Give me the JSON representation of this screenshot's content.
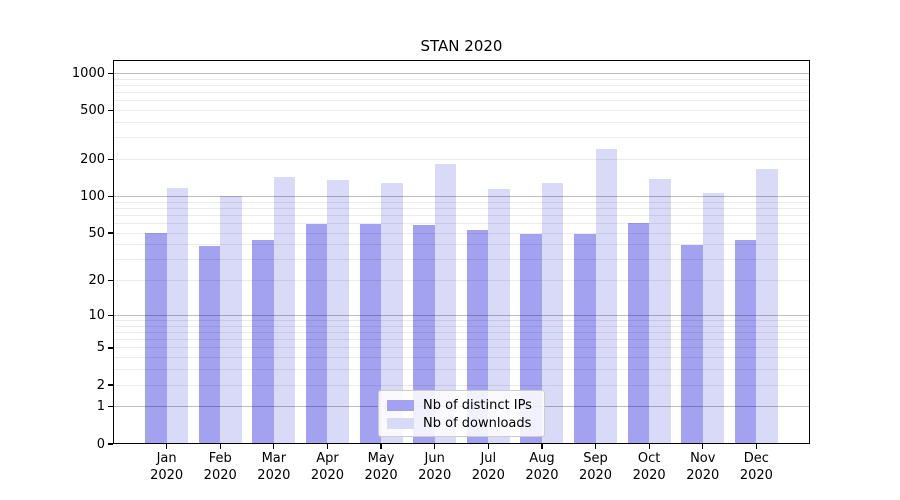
{
  "chart_data": {
    "type": "bar",
    "title": "STAN 2020",
    "categories": [
      "Jan",
      "Feb",
      "Mar",
      "Apr",
      "May",
      "Jun",
      "Jul",
      "Aug",
      "Sep",
      "Oct",
      "Nov",
      "Dec"
    ],
    "category_year": "2020",
    "series": [
      {
        "name": "Nb of distinct IPs",
        "color": "#a2a2f0",
        "values": [
          50,
          39,
          44,
          59,
          59,
          58,
          53,
          49,
          49,
          61,
          40,
          44
        ]
      },
      {
        "name": "Nb of downloads",
        "color": "#d9d9f8",
        "values": [
          118,
          100,
          143,
          137,
          128,
          185,
          116,
          130,
          245,
          140,
          107,
          168
        ]
      }
    ],
    "yscale": "log1p",
    "ylim": [
      0,
      1270
    ],
    "yticks": [
      0,
      1,
      2,
      5,
      10,
      20,
      50,
      100,
      200,
      500,
      1000
    ],
    "major_gridline_values": [
      1,
      10,
      100,
      1000
    ],
    "minor_gridline_decades": [
      1,
      10,
      100
    ],
    "grid": "both",
    "legend_position": "lower center",
    "colors": {
      "background": "#ffffff",
      "spine": "#000000",
      "text": "#000000",
      "major_grid": "rgba(0,0,0,0.26)",
      "minor_grid": "rgba(0,0,0,0.08)"
    }
  }
}
